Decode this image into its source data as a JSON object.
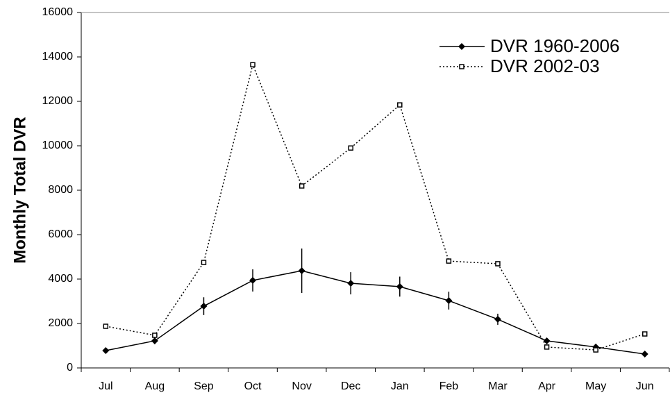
{
  "chart_data": {
    "type": "line",
    "y_label": "Monthly Total DVR",
    "categories": [
      "Jul",
      "Aug",
      "Sep",
      "Oct",
      "Nov",
      "Dec",
      "Jan",
      "Feb",
      "Mar",
      "Apr",
      "May",
      "Jun"
    ],
    "series": [
      {
        "name": "DVR 1960-2006",
        "color": "#000000",
        "line_style": "solid",
        "marker": "diamond",
        "values": [
          780,
          1220,
          2780,
          3940,
          4375,
          3810,
          3660,
          3030,
          2190,
          1220,
          940,
          625
        ],
        "errors": [
          100,
          150,
          400,
          500,
          1000,
          500,
          450,
          400,
          250,
          100,
          100,
          50
        ]
      },
      {
        "name": "DVR 2002-03",
        "color": "#000000",
        "line_style": "dotted",
        "marker": "square",
        "values": [
          1875,
          1470,
          4750,
          13650,
          8190,
          9900,
          11840,
          4810,
          4690,
          940,
          810,
          1530
        ]
      }
    ],
    "ylim": [
      0,
      16000
    ],
    "yticks": [
      0,
      2000,
      4000,
      6000,
      8000,
      10000,
      12000,
      14000,
      16000
    ],
    "legend": "top-right",
    "grid": false
  }
}
